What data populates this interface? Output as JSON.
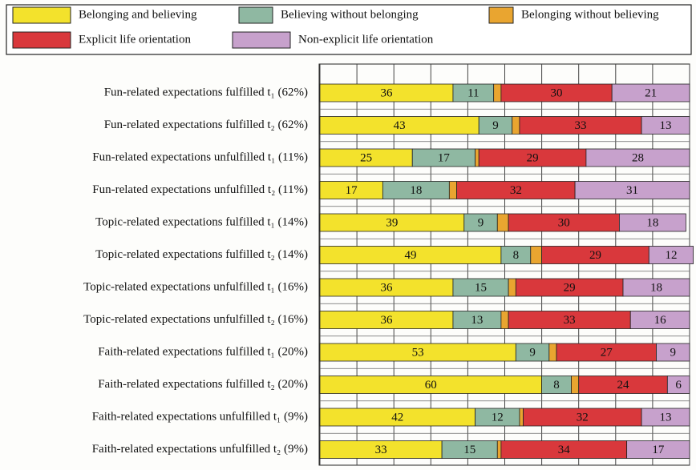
{
  "chart_data": {
    "type": "stacked-barh",
    "categories": [
      "Fun-related expectations fulfilled t₁ (62%)",
      "Fun-related expectations fulfilled t₂ (62%)",
      "Fun-related expectations unfulfilled t₁ (11%)",
      "Fun-related expectations unfulfilled t₂ (11%)",
      "Topic-related expectations fulfilled t₁ (14%)",
      "Topic-related expectations fulfilled t₂ (14%)",
      "Topic-related expectations unfulfilled t₁ (16%)",
      "Topic-related expectations unfulfilled t₂ (16%)",
      "Faith-related expectations fulfilled t₁ (20%)",
      "Faith-related expectations fulfilled t₂ (20%)",
      "Faith-related expectations unfulfilled t₁ (9%)",
      "Faith-related expectations unfulfilled t₂ (9%)"
    ],
    "series": [
      {
        "name": "Belonging and believing",
        "color": "#f3e22c",
        "values": [
          36,
          43,
          25,
          17,
          39,
          49,
          36,
          36,
          53,
          60,
          42,
          33
        ]
      },
      {
        "name": "Believing without belonging",
        "color": "#8fb8a2",
        "values": [
          11,
          9,
          17,
          18,
          9,
          8,
          15,
          13,
          9,
          8,
          12,
          15
        ]
      },
      {
        "name": "Belonging without believing",
        "color": "#e9a530",
        "values": [
          2,
          2,
          1,
          2,
          3,
          3,
          2,
          2,
          2,
          2,
          1,
          1
        ]
      },
      {
        "name": "Explicit life orientation",
        "color": "#d9383c",
        "values": [
          30,
          33,
          29,
          32,
          30,
          29,
          29,
          33,
          27,
          24,
          32,
          34
        ]
      },
      {
        "name": "Non-explicit life orientation",
        "color": "#c7a1cc",
        "values": [
          21,
          13,
          28,
          31,
          18,
          12,
          18,
          16,
          9,
          6,
          13,
          17
        ]
      }
    ],
    "xlim": [
      0,
      100
    ],
    "xticks": [
      0,
      10,
      20,
      30,
      40,
      50,
      60,
      70,
      80,
      90,
      100
    ],
    "grid": true
  }
}
